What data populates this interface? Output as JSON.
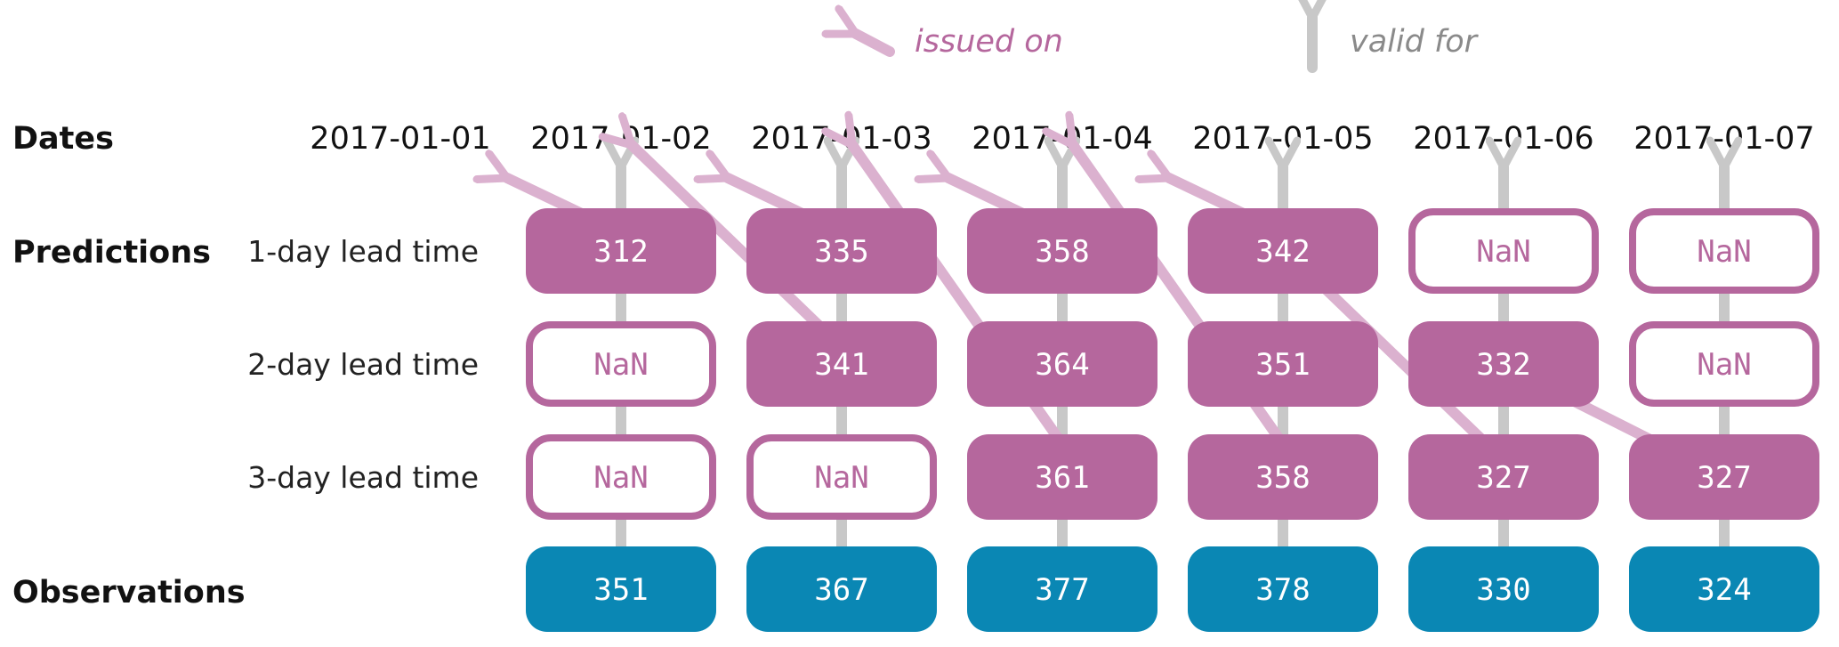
{
  "legend": {
    "issued_on": "issued on",
    "valid_for": "valid for"
  },
  "headings": {
    "dates": "Dates",
    "predictions": "Predictions",
    "observations": "Observations"
  },
  "lead_time_labels": [
    "1-day lead time",
    "2-day lead time",
    "3-day lead time"
  ],
  "dates": [
    "2017-01-01",
    "2017-01-02",
    "2017-01-03",
    "2017-01-04",
    "2017-01-05",
    "2017-01-06",
    "2017-01-07"
  ],
  "predictions": [
    [
      "312",
      "335",
      "358",
      "342",
      "NaN",
      "NaN"
    ],
    [
      "NaN",
      "341",
      "364",
      "351",
      "332",
      "NaN"
    ],
    [
      "NaN",
      "NaN",
      "361",
      "358",
      "327",
      "327"
    ]
  ],
  "observations": [
    "351",
    "367",
    "377",
    "378",
    "330",
    "324"
  ],
  "colors": {
    "prediction": "#b5679d",
    "observation": "#0a87b4",
    "issued_arrow": "#dbb1cf",
    "valid_arrow": "#c8c8c8",
    "legend_issued_text": "#b5679d",
    "legend_valid_text": "#8a8a8a"
  }
}
